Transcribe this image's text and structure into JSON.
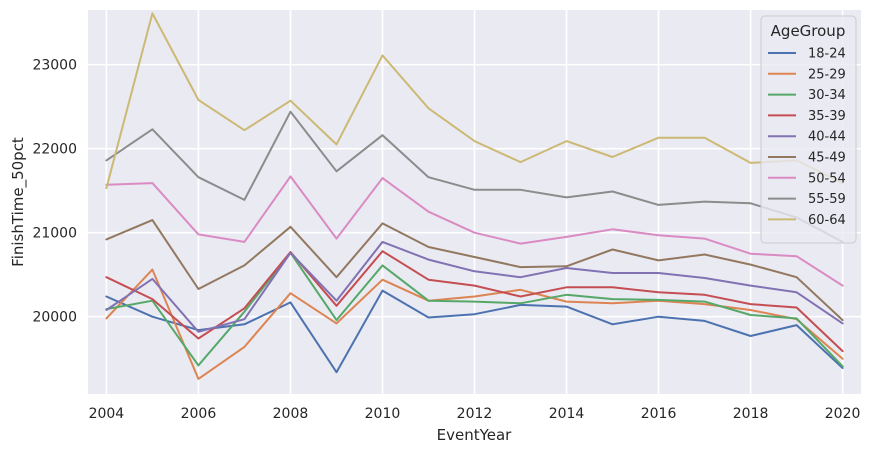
{
  "chart_data": {
    "type": "line",
    "title": "",
    "xlabel": "EventYear",
    "ylabel": "FinishTime_50pct",
    "x": [
      2004,
      2005,
      2006,
      2007,
      2008,
      2009,
      2010,
      2011,
      2012,
      2013,
      2014,
      2015,
      2016,
      2017,
      2018,
      2019,
      2020
    ],
    "xlim": [
      2003.6,
      2020.4
    ],
    "ylim": [
      19080,
      23650
    ],
    "xticks": [
      "2004",
      "2006",
      "2008",
      "2010",
      "2012",
      "2014",
      "2016",
      "2018",
      "2020"
    ],
    "yticks": [
      "20000",
      "21000",
      "22000",
      "23000"
    ],
    "grid": true,
    "legend": {
      "title": "AgeGroup",
      "placement": "top-right"
    },
    "series": [
      {
        "name": "18-24",
        "color": "#4c72b0",
        "values": [
          20240,
          20000,
          19840,
          19910,
          20170,
          19340,
          20310,
          19990,
          20030,
          20140,
          20120,
          19910,
          20000,
          19950,
          19770,
          19900,
          19390
        ]
      },
      {
        "name": "25-29",
        "color": "#dd8452",
        "values": [
          19980,
          20560,
          19260,
          19640,
          20280,
          19920,
          20440,
          20190,
          20240,
          20320,
          20180,
          20160,
          20190,
          20150,
          20080,
          19970,
          19500
        ]
      },
      {
        "name": "30-34",
        "color": "#55a868",
        "values": [
          20090,
          20190,
          19420,
          20060,
          20760,
          19960,
          20610,
          20190,
          20180,
          20160,
          20260,
          20210,
          20200,
          20180,
          20020,
          19980,
          19410
        ]
      },
      {
        "name": "35-39",
        "color": "#c44e52",
        "values": [
          20470,
          20210,
          19740,
          20100,
          20770,
          20130,
          20780,
          20440,
          20370,
          20240,
          20350,
          20350,
          20290,
          20260,
          20150,
          20110,
          19590
        ]
      },
      {
        "name": "40-44",
        "color": "#8172b3",
        "values": [
          20080,
          20450,
          19820,
          19970,
          20760,
          20190,
          20890,
          20680,
          20540,
          20470,
          20580,
          20520,
          20520,
          20460,
          20370,
          20290,
          19920
        ]
      },
      {
        "name": "45-49",
        "color": "#937860",
        "values": [
          20920,
          21150,
          20330,
          20610,
          21070,
          20470,
          21110,
          20830,
          20710,
          20590,
          20600,
          20800,
          20670,
          20740,
          20620,
          20470,
          19960
        ]
      },
      {
        "name": "50-54",
        "color": "#da8bc3",
        "values": [
          21570,
          21590,
          20980,
          20890,
          21670,
          20930,
          21650,
          21250,
          21000,
          20870,
          20950,
          21040,
          20970,
          20930,
          20750,
          20720,
          20370
        ]
      },
      {
        "name": "55-59",
        "color": "#8c8c8c",
        "values": [
          21860,
          22230,
          21660,
          21390,
          22440,
          21730,
          22160,
          21660,
          21510,
          21510,
          21420,
          21490,
          21330,
          21370,
          21350,
          21180,
          20890
        ]
      },
      {
        "name": "60-64",
        "color": "#ccb974",
        "values": [
          21530,
          23610,
          22580,
          22220,
          22570,
          22050,
          23110,
          22480,
          22090,
          21840,
          22090,
          21900,
          22130,
          22130,
          21830,
          21860,
          21590
        ]
      }
    ]
  }
}
